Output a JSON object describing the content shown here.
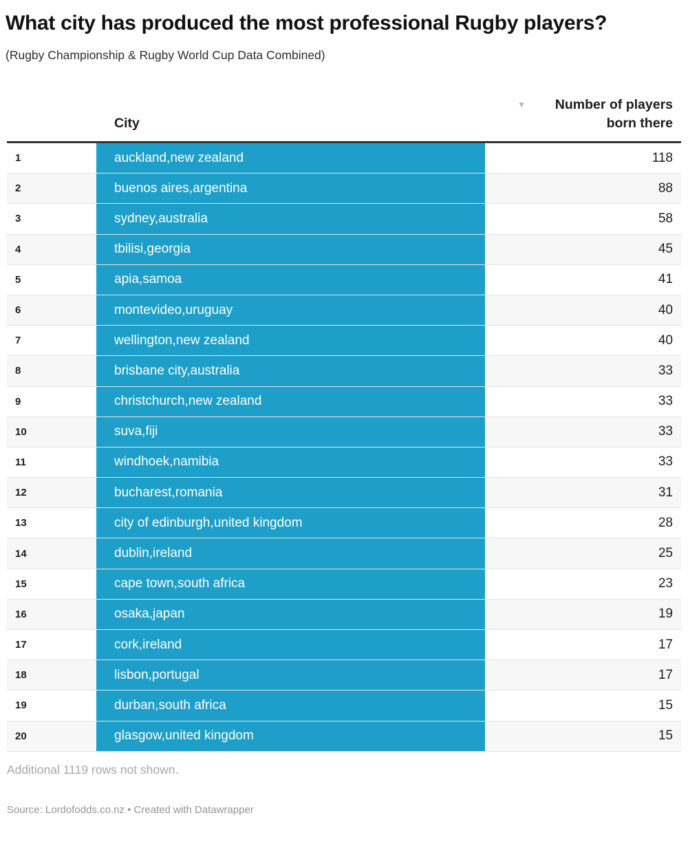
{
  "page": {
    "title": "What city has produced the most professional Rugby players?",
    "subtitle": "(Rugby Championship & Rugby World Cup Data Combined)"
  },
  "table_header": {
    "city_column_label": "City",
    "players_column_label": "Number of players born there",
    "sort_icon": "▼"
  },
  "footer": {
    "note": "Additional 1119 rows not shown.",
    "source": "Source: Lordofodds.co.nz • Created with Datawrapper"
  },
  "colors": {
    "bar_fill": "#1d9fc9",
    "header_rule": "#333333",
    "alt_row_bg": "#f7f7f7",
    "row_border": "#e4e4e4",
    "sort_icon": "#b5b5b5",
    "city_text": "#ffffff"
  },
  "chart_data": {
    "type": "table",
    "title": "What city has produced the most professional Rugby players?",
    "subtitle": "(Rugby Championship & Rugby World Cup Data Combined)",
    "columns": [
      "Rank",
      "City",
      "Number of players born there"
    ],
    "sort": {
      "column": "Number of players born there",
      "direction": "desc"
    },
    "rows": [
      {
        "rank": 1,
        "city": "auckland,new zealand",
        "players": 118
      },
      {
        "rank": 2,
        "city": "buenos aires,argentina",
        "players": 88
      },
      {
        "rank": 3,
        "city": "sydney,australia",
        "players": 58
      },
      {
        "rank": 4,
        "city": "tbilisi,georgia",
        "players": 45
      },
      {
        "rank": 5,
        "city": "apia,samoa",
        "players": 41
      },
      {
        "rank": 6,
        "city": "montevideo,uruguay",
        "players": 40
      },
      {
        "rank": 7,
        "city": "wellington,new zealand",
        "players": 40
      },
      {
        "rank": 8,
        "city": "brisbane city,australia",
        "players": 33
      },
      {
        "rank": 9,
        "city": "christchurch,new zealand",
        "players": 33
      },
      {
        "rank": 10,
        "city": "suva,fiji",
        "players": 33
      },
      {
        "rank": 11,
        "city": "windhoek,namibia",
        "players": 33
      },
      {
        "rank": 12,
        "city": "bucharest,romania",
        "players": 31
      },
      {
        "rank": 13,
        "city": "city of edinburgh,united kingdom",
        "players": 28
      },
      {
        "rank": 14,
        "city": "dublin,ireland",
        "players": 25
      },
      {
        "rank": 15,
        "city": "cape town,south africa",
        "players": 23
      },
      {
        "rank": 16,
        "city": "osaka,japan",
        "players": 19
      },
      {
        "rank": 17,
        "city": "cork,ireland",
        "players": 17
      },
      {
        "rank": 18,
        "city": "lisbon,portugal",
        "players": 17
      },
      {
        "rank": 19,
        "city": "durban,south africa",
        "players": 15
      },
      {
        "rank": 20,
        "city": "glasgow,united kingdom",
        "players": 15
      }
    ],
    "note": "Additional 1119 rows not shown.",
    "bar_style": "full-width-column-fill"
  }
}
